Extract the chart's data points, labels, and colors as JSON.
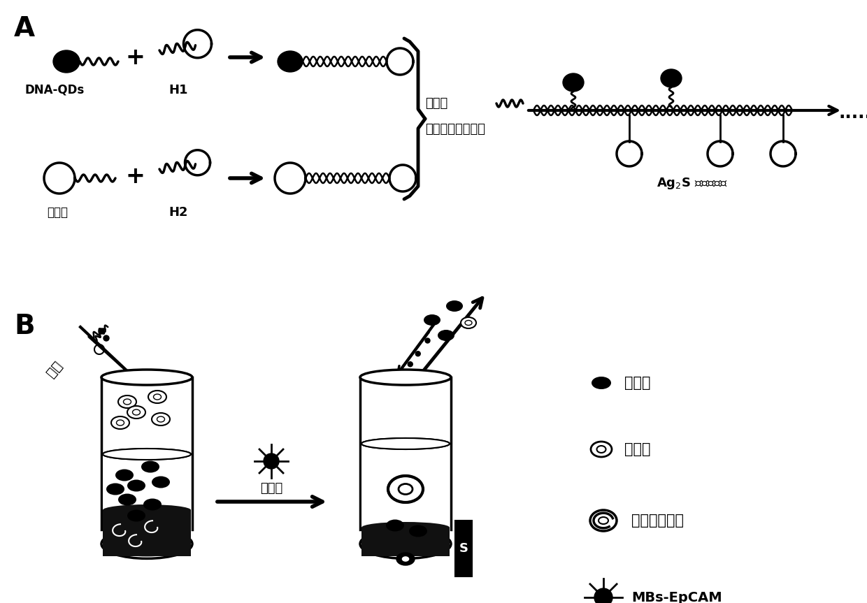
{
  "bg_color": "#ffffff",
  "label_A": "A",
  "label_B": "B",
  "label_dna_qds": "DNA-QDs",
  "label_h1": "H1",
  "label_h2": "H2",
  "label_aptamer": "适配体",
  "label_trigger": "诱发链",
  "label_hcr": "杂交链式循环反应",
  "label_assembly": "Ag$_2$S 纳米组装体",
  "label_recognize": "识别",
  "label_mag_sep": "磁分离",
  "label_rbc": "红细胞",
  "label_wbc": "白细胞",
  "label_ctc": "循环肿瘤细胞",
  "label_mbs": "MBs-EpCAM",
  "label_s": "S"
}
